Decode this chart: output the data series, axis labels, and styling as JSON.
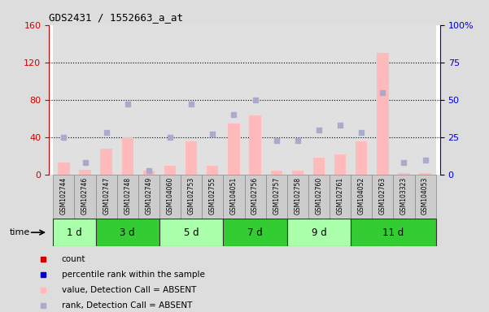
{
  "title": "GDS2431 / 1552663_a_at",
  "samples": [
    "GSM102744",
    "GSM102746",
    "GSM102747",
    "GSM102748",
    "GSM102749",
    "GSM104060",
    "GSM102753",
    "GSM102755",
    "GSM104051",
    "GSM102756",
    "GSM102757",
    "GSM102758",
    "GSM102760",
    "GSM102761",
    "GSM104052",
    "GSM102763",
    "GSM103323",
    "GSM104053"
  ],
  "values": [
    13,
    5,
    28,
    40,
    4,
    10,
    36,
    10,
    55,
    63,
    4,
    4,
    18,
    22,
    36,
    130,
    2,
    2
  ],
  "ranks_pct": [
    25,
    8,
    28,
    47,
    3,
    25,
    47,
    27,
    40,
    50,
    23,
    23,
    30,
    33,
    28,
    55,
    8,
    10
  ],
  "time_groups": [
    {
      "label": "1 d",
      "start": 0,
      "end": 2,
      "color": "#aaffaa"
    },
    {
      "label": "3 d",
      "start": 2,
      "end": 5,
      "color": "#33cc33"
    },
    {
      "label": "5 d",
      "start": 5,
      "end": 8,
      "color": "#aaffaa"
    },
    {
      "label": "7 d",
      "start": 8,
      "end": 11,
      "color": "#33cc33"
    },
    {
      "label": "9 d",
      "start": 11,
      "end": 14,
      "color": "#aaffaa"
    },
    {
      "label": "11 d",
      "start": 14,
      "end": 18,
      "color": "#33cc33"
    }
  ],
  "ylim_left": [
    0,
    160
  ],
  "ylim_right": [
    0,
    100
  ],
  "yticks_left": [
    0,
    40,
    80,
    120,
    160
  ],
  "yticks_right": [
    0,
    25,
    50,
    75,
    100
  ],
  "ytick_labels_right": [
    "0",
    "25",
    "50",
    "75",
    "100%"
  ],
  "bar_color_absent": "#ffbbbb",
  "rank_color_absent": "#aaaacc",
  "label_color_left": "#cc0000",
  "label_color_right": "#0000cc",
  "plot_bg": "#ffffff",
  "fig_bg": "#dddddd",
  "sample_col_bg": "#cccccc",
  "legend_items": [
    {
      "color": "#cc0000",
      "label": "count"
    },
    {
      "color": "#0000cc",
      "label": "percentile rank within the sample"
    },
    {
      "color": "#ffbbbb",
      "label": "value, Detection Call = ABSENT"
    },
    {
      "color": "#aaaacc",
      "label": "rank, Detection Call = ABSENT"
    }
  ]
}
